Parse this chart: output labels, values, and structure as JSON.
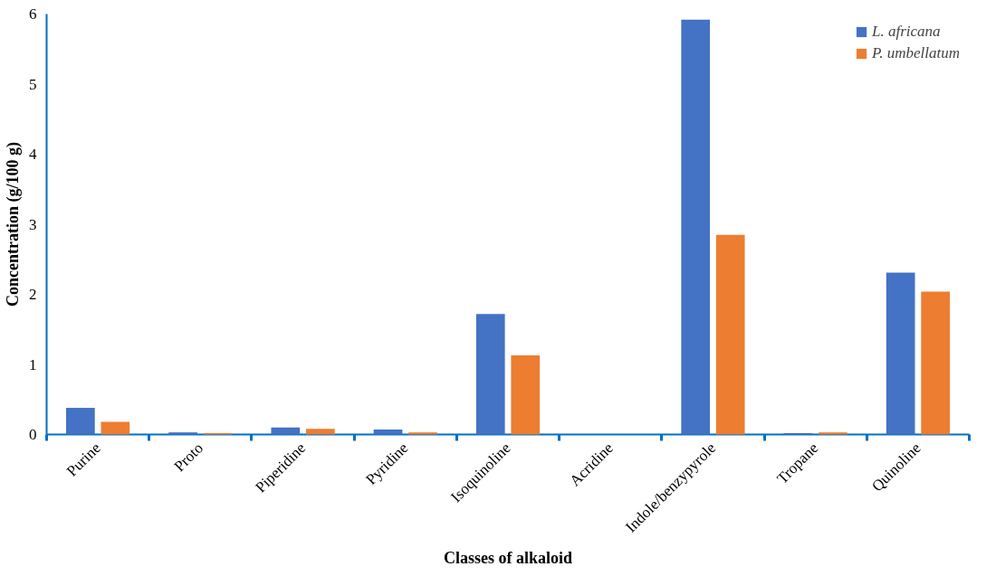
{
  "chart_data": {
    "type": "bar",
    "xlabel": "Classes of alkaloid",
    "ylabel": "Concentration (g/100 g)",
    "categories": [
      "Purine",
      "Proto",
      "Piperidine",
      "Pyridine",
      "Isoquinoline",
      "Acridine",
      "Indole/benzypyrole",
      "Tropane",
      "Quinoline"
    ],
    "series": [
      {
        "name": "L. africana",
        "color": "#4472c4",
        "values": [
          0.38,
          0.03,
          0.1,
          0.07,
          1.72,
          0,
          5.92,
          0.02,
          2.31
        ]
      },
      {
        "name": "P. umbellatum",
        "color": "#ed7d31",
        "values": [
          0.18,
          0.02,
          0.08,
          0.03,
          1.13,
          0,
          2.85,
          0.03,
          2.04
        ]
      }
    ],
    "ylim": [
      0,
      6
    ],
    "yticks": [
      0,
      1,
      2,
      3,
      4,
      5,
      6
    ],
    "grid": false,
    "legend": "top right"
  }
}
